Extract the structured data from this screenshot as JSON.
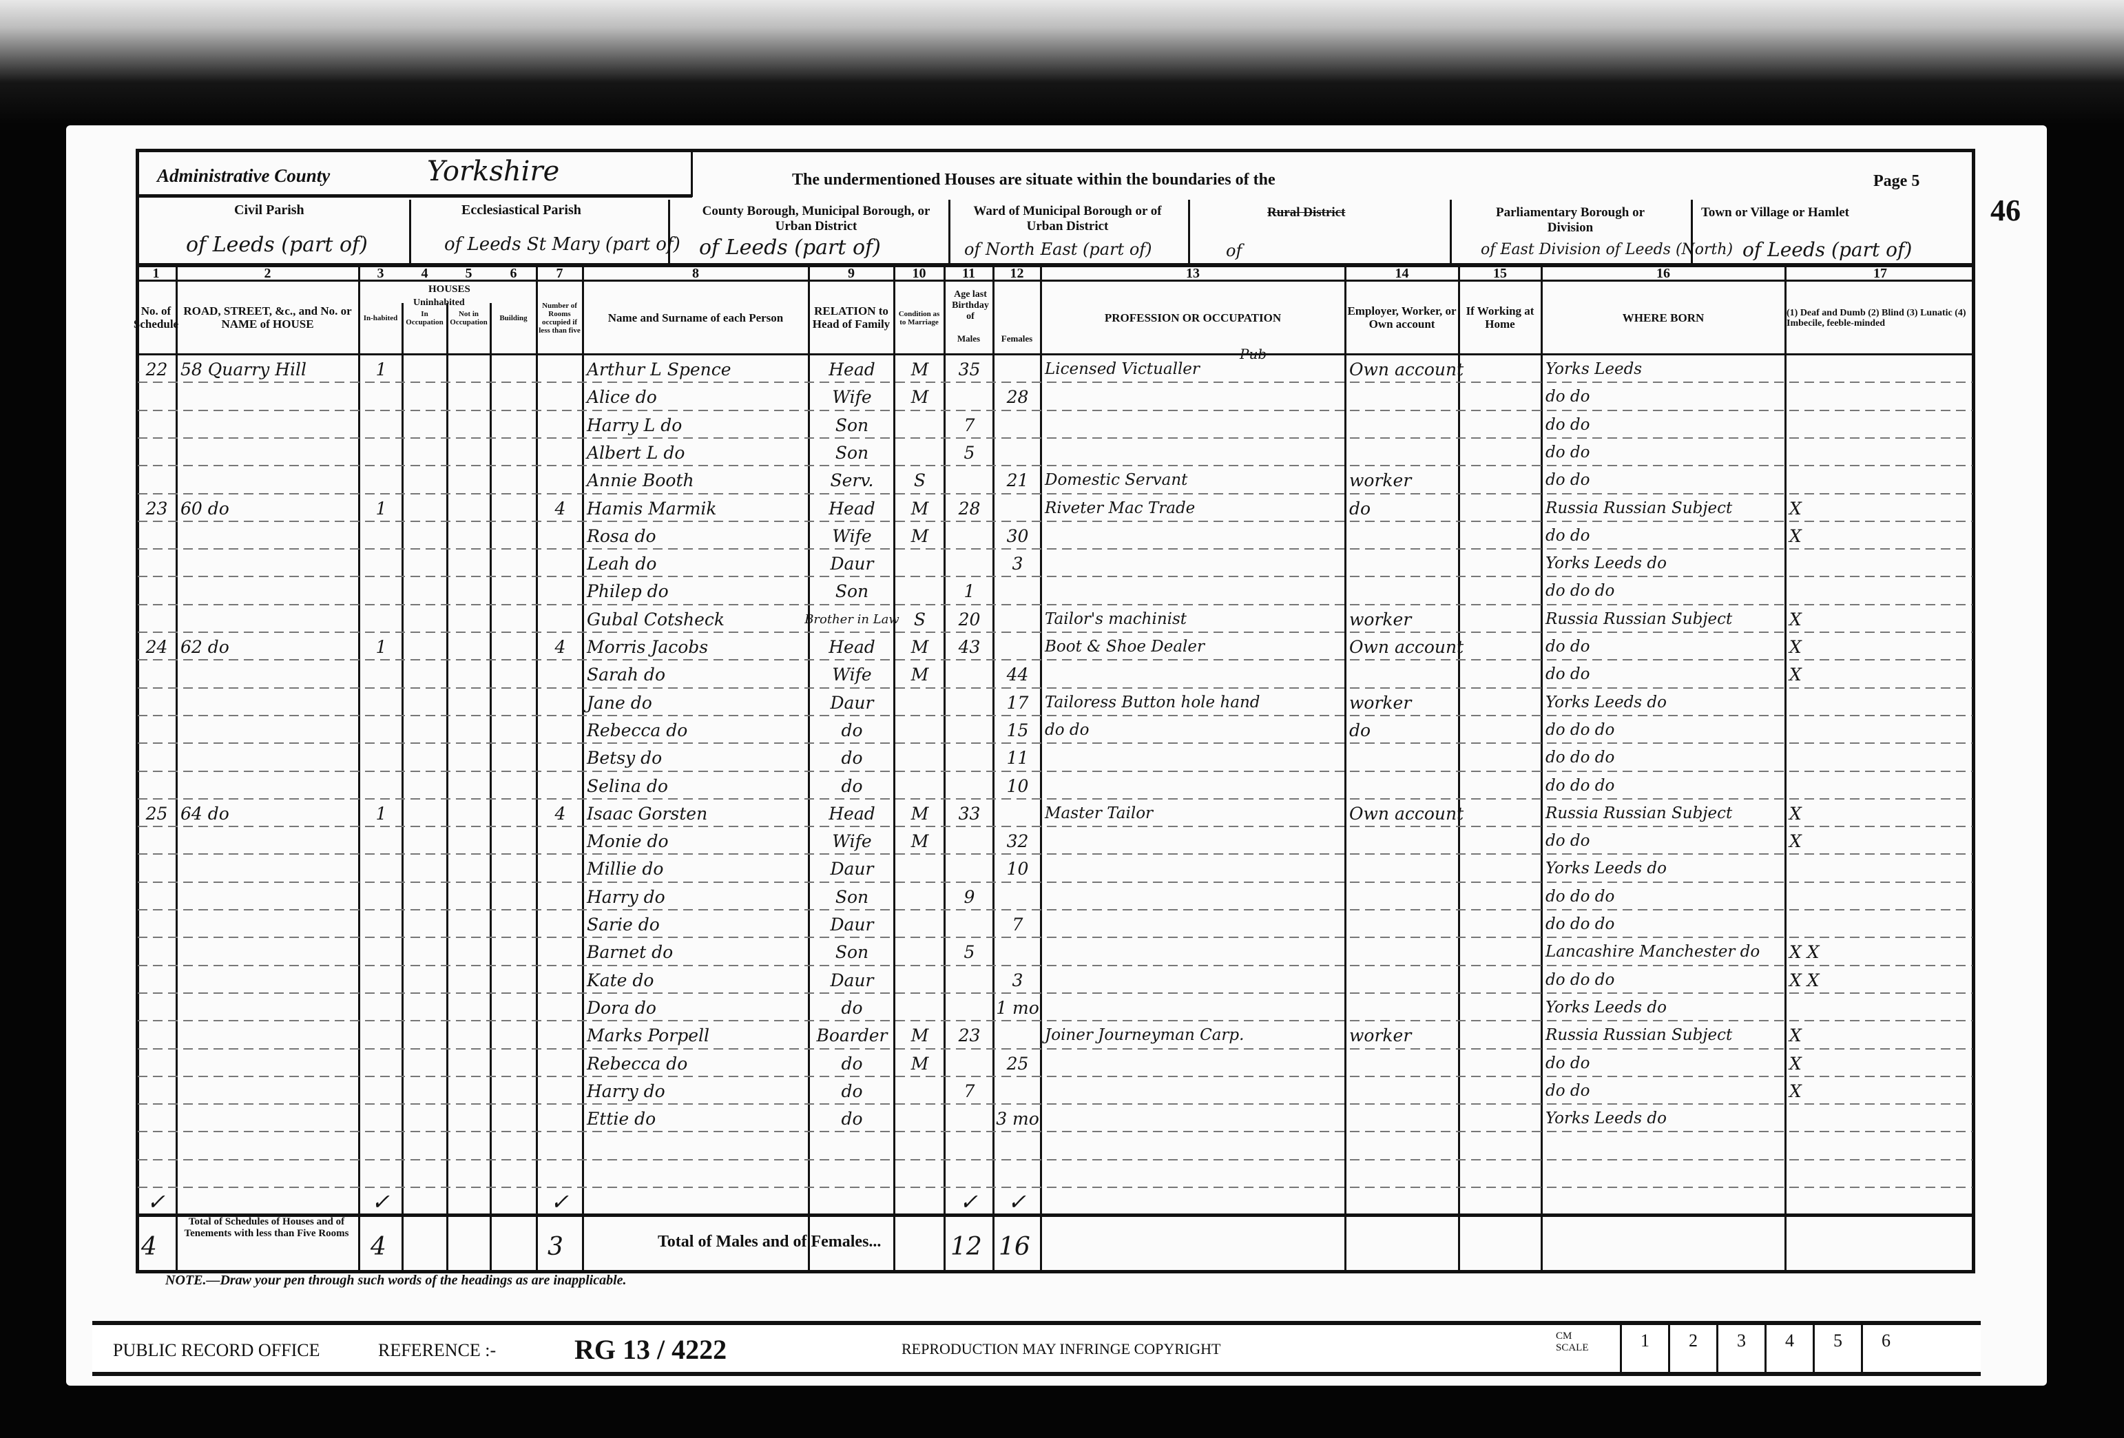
{
  "header": {
    "admin_county_label": "Administrative County",
    "admin_county_value": "Yorkshire",
    "boundaries_text": "The undermentioned Houses are situate within the boundaries of the",
    "page_label": "Page 5",
    "margin_folio": "46",
    "civil_parish_label": "Civil Parish",
    "civil_parish_value": "of Leeds (part of)",
    "eccl_parish_label": "Ecclesiastical Parish",
    "eccl_parish_value": "of Leeds St Mary (part of)",
    "county_borough_label": "County Borough, Municipal Borough, or Urban District",
    "county_borough_value": "of Leeds (part of)",
    "ward_label": "Ward of Municipal Borough or of Urban District",
    "ward_value": "of North East (part of)",
    "rural_label": "Rural District",
    "rural_value": "of",
    "parl_label": "Parliamentary Borough or Division",
    "parl_value": "of East Division of Leeds (North)",
    "town_label": "Town or Village or Hamlet",
    "town_value": "of Leeds (part of)"
  },
  "columns": {
    "numbers": [
      "1",
      "2",
      "3",
      "4",
      "5",
      "6",
      "7",
      "8",
      "9",
      "10",
      "11",
      "12",
      "13",
      "14",
      "15",
      "16",
      "17"
    ],
    "houses_group": "HOUSES",
    "uninhabited_group": "Uninhabited",
    "headings": [
      "No. of Schedule",
      "ROAD, STREET, &c., and No. or NAME of HOUSE",
      "In-habited",
      "In Occupation",
      "Not in Occupation",
      "Building",
      "Number of Rooms occupied if less than five",
      "Name and Surname of each Person",
      "RELATION to Head of Family",
      "Condition as to Marriage",
      "Males",
      "Females",
      "PROFESSION OR OCCUPATION",
      "Employer, Worker, or Own account",
      "If Working at Home",
      "WHERE BORN",
      "(1) Deaf and Dumb (2) Blind (3) Lunatic (4) Imbecile, feeble-minded"
    ],
    "age_heading": "Age last Birthday of"
  },
  "rows": [
    {
      "schedule": "22",
      "address": "58 Quarry Hill",
      "inhabited": "1",
      "rooms": "",
      "name": "Arthur L Spence",
      "relation": "Head",
      "condition": "M",
      "male": "35",
      "female": "",
      "occupation": "Licensed Victualler",
      "occupation_note": "Pub",
      "employer": "Own account",
      "born": "Yorks Leeds",
      "infirmity": ""
    },
    {
      "schedule": "",
      "address": "",
      "inhabited": "",
      "rooms": "",
      "name": "Alice do",
      "relation": "Wife",
      "condition": "M",
      "male": "",
      "female": "28",
      "occupation": "",
      "employer": "",
      "born": "do do",
      "infirmity": ""
    },
    {
      "schedule": "",
      "address": "",
      "inhabited": "",
      "rooms": "",
      "name": "Harry L do",
      "relation": "Son",
      "condition": "",
      "male": "7",
      "female": "",
      "occupation": "",
      "employer": "",
      "born": "do do",
      "infirmity": ""
    },
    {
      "schedule": "",
      "address": "",
      "inhabited": "",
      "rooms": "",
      "name": "Albert L do",
      "relation": "Son",
      "condition": "",
      "male": "5",
      "female": "",
      "occupation": "",
      "employer": "",
      "born": "do do",
      "infirmity": ""
    },
    {
      "schedule": "",
      "address": "",
      "inhabited": "",
      "rooms": "",
      "name": "Annie Booth",
      "relation": "Serv.",
      "condition": "S",
      "male": "",
      "female": "21",
      "occupation": "Domestic Servant",
      "employer": "worker",
      "born": "do do",
      "infirmity": ""
    },
    {
      "schedule": "23",
      "address": "60 do",
      "inhabited": "1",
      "rooms": "4",
      "name": "Hamis Marmik",
      "relation": "Head",
      "condition": "M",
      "male": "28",
      "female": "",
      "occupation": "Riveter Mac Trade",
      "employer": "do",
      "born": "Russia Russian Subject",
      "infirmity": "X"
    },
    {
      "schedule": "",
      "address": "",
      "inhabited": "",
      "rooms": "",
      "name": "Rosa do",
      "relation": "Wife",
      "condition": "M",
      "male": "",
      "female": "30",
      "occupation": "",
      "employer": "",
      "born": "do do",
      "infirmity": "X"
    },
    {
      "schedule": "",
      "address": "",
      "inhabited": "",
      "rooms": "",
      "name": "Leah do",
      "relation": "Daur",
      "condition": "",
      "male": "",
      "female": "3",
      "occupation": "",
      "employer": "",
      "born": "Yorks Leeds do",
      "infirmity": ""
    },
    {
      "schedule": "",
      "address": "",
      "inhabited": "",
      "rooms": "",
      "name": "Philep do",
      "relation": "Son",
      "condition": "",
      "male": "1",
      "female": "",
      "occupation": "",
      "employer": "",
      "born": "do do do",
      "infirmity": ""
    },
    {
      "schedule": "",
      "address": "",
      "inhabited": "",
      "rooms": "",
      "name": "Gubal Cotsheck",
      "relation": "Brother in Law",
      "condition": "S",
      "male": "20",
      "female": "",
      "occupation": "Tailor's machinist",
      "employer": "worker",
      "born": "Russia Russian Subject",
      "infirmity": "X"
    },
    {
      "schedule": "24",
      "address": "62 do",
      "inhabited": "1",
      "rooms": "4",
      "name": "Morris Jacobs",
      "relation": "Head",
      "condition": "M",
      "male": "43",
      "female": "",
      "occupation": "Boot & Shoe Dealer",
      "employer": "Own account",
      "born": "do do",
      "infirmity": "X"
    },
    {
      "schedule": "",
      "address": "",
      "inhabited": "",
      "rooms": "",
      "name": "Sarah do",
      "relation": "Wife",
      "condition": "M",
      "male": "",
      "female": "44",
      "occupation": "",
      "employer": "",
      "born": "do do",
      "infirmity": "X"
    },
    {
      "schedule": "",
      "address": "",
      "inhabited": "",
      "rooms": "",
      "name": "Jane do",
      "relation": "Daur",
      "condition": "",
      "male": "",
      "female": "17",
      "occupation": "Tailoress Button hole hand",
      "employer": "worker",
      "born": "Yorks Leeds do",
      "infirmity": ""
    },
    {
      "schedule": "",
      "address": "",
      "inhabited": "",
      "rooms": "",
      "name": "Rebecca do",
      "relation": "do",
      "condition": "",
      "male": "",
      "female": "15",
      "occupation": "do do",
      "employer": "do",
      "born": "do do do",
      "infirmity": ""
    },
    {
      "schedule": "",
      "address": "",
      "inhabited": "",
      "rooms": "",
      "name": "Betsy do",
      "relation": "do",
      "condition": "",
      "male": "",
      "female": "11",
      "occupation": "",
      "employer": "",
      "born": "do do do",
      "infirmity": ""
    },
    {
      "schedule": "",
      "address": "",
      "inhabited": "",
      "rooms": "",
      "name": "Selina do",
      "relation": "do",
      "condition": "",
      "male": "",
      "female": "10",
      "occupation": "",
      "employer": "",
      "born": "do do do",
      "infirmity": ""
    },
    {
      "schedule": "25",
      "address": "64 do",
      "inhabited": "1",
      "rooms": "4",
      "name": "Isaac Gorsten",
      "relation": "Head",
      "condition": "M",
      "male": "33",
      "female": "",
      "occupation": "Master Tailor",
      "employer": "Own account",
      "born": "Russia Russian Subject",
      "infirmity": "X"
    },
    {
      "schedule": "",
      "address": "",
      "inhabited": "",
      "rooms": "",
      "name": "Monie do",
      "relation": "Wife",
      "condition": "M",
      "male": "",
      "female": "32",
      "occupation": "",
      "employer": "",
      "born": "do do",
      "infirmity": "X"
    },
    {
      "schedule": "",
      "address": "",
      "inhabited": "",
      "rooms": "",
      "name": "Millie do",
      "relation": "Daur",
      "condition": "",
      "male": "",
      "female": "10",
      "occupation": "",
      "employer": "",
      "born": "Yorks Leeds do",
      "infirmity": ""
    },
    {
      "schedule": "",
      "address": "",
      "inhabited": "",
      "rooms": "",
      "name": "Harry do",
      "relation": "Son",
      "condition": "",
      "male": "9",
      "female": "",
      "occupation": "",
      "employer": "",
      "born": "do do do",
      "infirmity": ""
    },
    {
      "schedule": "",
      "address": "",
      "inhabited": "",
      "rooms": "",
      "name": "Sarie do",
      "relation": "Daur",
      "condition": "",
      "male": "",
      "female": "7",
      "occupation": "",
      "employer": "",
      "born": "do do do",
      "infirmity": ""
    },
    {
      "schedule": "",
      "address": "",
      "inhabited": "",
      "rooms": "",
      "name": "Barnet do",
      "relation": "Son",
      "condition": "",
      "male": "5",
      "female": "",
      "occupation": "",
      "employer": "",
      "born": "Lancashire Manchester do",
      "infirmity": "X X"
    },
    {
      "schedule": "",
      "address": "",
      "inhabited": "",
      "rooms": "",
      "name": "Kate do",
      "relation": "Daur",
      "condition": "",
      "male": "",
      "female": "3",
      "occupation": "",
      "employer": "",
      "born": "do do do",
      "infirmity": "X X"
    },
    {
      "schedule": "",
      "address": "",
      "inhabited": "",
      "rooms": "",
      "name": "Dora do",
      "relation": "do",
      "condition": "",
      "male": "",
      "female": "1 mo",
      "occupation": "",
      "employer": "",
      "born": "Yorks Leeds do",
      "infirmity": ""
    },
    {
      "schedule": "",
      "address": "",
      "inhabited": "",
      "rooms": "",
      "name": "Marks Porpell",
      "relation": "Boarder",
      "condition": "M",
      "male": "23",
      "female": "",
      "occupation": "Joiner Journeyman Carp.",
      "employer": "worker",
      "born": "Russia Russian Subject",
      "infirmity": "X"
    },
    {
      "schedule": "",
      "address": "",
      "inhabited": "",
      "rooms": "",
      "name": "Rebecca do",
      "relation": "do",
      "condition": "M",
      "male": "",
      "female": "25",
      "occupation": "",
      "employer": "",
      "born": "do do",
      "infirmity": "X"
    },
    {
      "schedule": "",
      "address": "",
      "inhabited": "",
      "rooms": "",
      "name": "Harry do",
      "relation": "do",
      "condition": "",
      "male": "7",
      "female": "",
      "occupation": "",
      "employer": "",
      "born": "do do",
      "infirmity": "X"
    },
    {
      "schedule": "",
      "address": "",
      "inhabited": "",
      "rooms": "",
      "name": "Ettie do",
      "relation": "do",
      "condition": "",
      "male": "",
      "female": "3 mo",
      "occupation": "",
      "employer": "",
      "born": "Yorks Leeds do",
      "infirmity": ""
    }
  ],
  "check_row": {
    "schedule": "✓",
    "inhabited": "✓",
    "rooms": "✓",
    "male": "✓",
    "female": "✓"
  },
  "totals": {
    "schedules_label": "Total of Schedules of Houses and of Tenements with less than Five Rooms",
    "schedules": "4",
    "inhabited": "4",
    "rooms": "3",
    "males_females_label": "Total of Males and of Females...",
    "males": "12",
    "females": "16"
  },
  "note": "NOTE.—Draw your pen through such words of the headings as are inapplicable.",
  "footer": {
    "office": "PUBLIC RECORD OFFICE",
    "reference_label": "REFERENCE :-",
    "reference": "RG 13 / 4222",
    "copyright": "REPRODUCTION MAY INFRINGE COPYRIGHT",
    "scale_label": "CM SCALE",
    "scale_marks": [
      "1",
      "2",
      "3",
      "4",
      "5",
      "6"
    ]
  }
}
